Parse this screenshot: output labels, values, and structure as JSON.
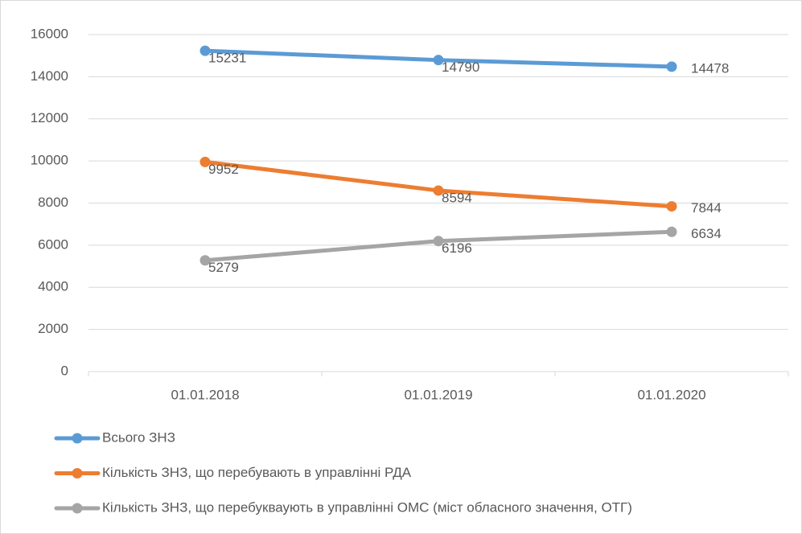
{
  "chart_data": {
    "type": "line",
    "categories": [
      "01.01.2018",
      "01.01.2019",
      "01.01.2020"
    ],
    "series": [
      {
        "name": "Всього ЗНЗ",
        "color": "#5b9bd5",
        "values": [
          15231,
          14790,
          14478
        ]
      },
      {
        "name": "Кількість ЗНЗ, що перебувають в управлінні РДА",
        "color": "#ed7d31",
        "values": [
          9952,
          8594,
          7844
        ]
      },
      {
        "name": "Кількість ЗНЗ, що перебукваують в управлінні ОМС (міст обласного значення, ОТГ)",
        "color": "#a5a5a5",
        "values": [
          5279,
          6196,
          6634
        ]
      }
    ],
    "ylim": [
      0,
      16000
    ],
    "yticks": [
      0,
      2000,
      4000,
      6000,
      8000,
      10000,
      12000,
      14000,
      16000
    ],
    "grid": true,
    "legend": "bottom"
  }
}
